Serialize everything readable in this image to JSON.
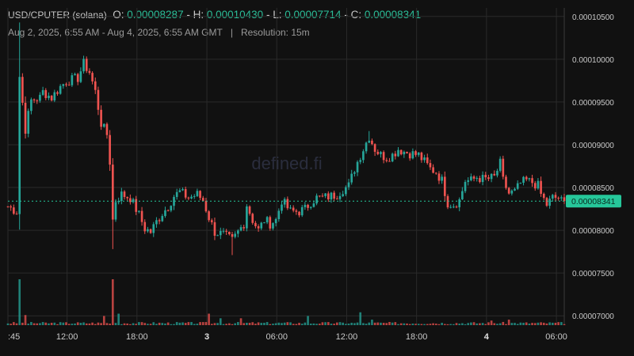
{
  "header": {
    "pair": "USD/CPUTER (solana)",
    "o_label": "O:",
    "o_value": "0.00008287",
    "h_label": "- H:",
    "h_value": "0.00010430",
    "l_label": "- L:",
    "l_value": "0.00007714",
    "c_label": "- C:",
    "c_value": "0.00008341",
    "date_range": "Aug 2, 2025, 6:55 AM - Aug 4, 2025, 6:55 AM GMT",
    "separator": "|",
    "resolution": "Resolution: 15m"
  },
  "watermark": "defined.fi",
  "colors": {
    "up": "#26a69a",
    "down": "#ef5350",
    "background": "#111111",
    "grid": "#2a2a2a",
    "last_price": "#26c79a"
  },
  "chart_data": {
    "type": "candlestick",
    "ylim": [
      6.9e-05,
      0.000106
    ],
    "yticks": [
      {
        "v": 0.000105,
        "label": "0.00010500"
      },
      {
        "v": 0.0001,
        "label": "0.00010000"
      },
      {
        "v": 9.5e-05,
        "label": "0.00009500"
      },
      {
        "v": 9e-05,
        "label": "0.00009000"
      },
      {
        "v": 8.5e-05,
        "label": "0.00008500"
      },
      {
        "v": 8e-05,
        "label": "0.00008000"
      },
      {
        "v": 7.5e-05,
        "label": "0.00007500"
      },
      {
        "v": 7e-05,
        "label": "0.00007000"
      }
    ],
    "xticks": [
      {
        "t": 0,
        "label": ":45",
        "bold": false
      },
      {
        "t": 20.3,
        "label": "12:00",
        "bold": false
      },
      {
        "t": 44.3,
        "label": "18:00",
        "bold": false
      },
      {
        "t": 68.3,
        "label": "3",
        "bold": true
      },
      {
        "t": 92.3,
        "label": "06:00",
        "bold": false
      },
      {
        "t": 116.3,
        "label": "12:00",
        "bold": false
      },
      {
        "t": 140.3,
        "label": "18:00",
        "bold": false
      },
      {
        "t": 164.3,
        "label": "4",
        "bold": true
      },
      {
        "t": 188.3,
        "label": "06:00",
        "bold": false
      }
    ],
    "last_price": 8.341e-05,
    "last_price_label": "0.00008341",
    "price_anchors": [
      [
        0,
        8.28e-05
      ],
      [
        3,
        8.22e-05
      ],
      [
        4,
        9.8e-05
      ],
      [
        6,
        9.18e-05
      ],
      [
        8,
        9.52e-05
      ],
      [
        11,
        9.55e-05
      ],
      [
        12,
        9.62e-05
      ],
      [
        15,
        9.55e-05
      ],
      [
        18,
        9.68e-05
      ],
      [
        20,
        9.74e-05
      ],
      [
        24,
        9.78e-05
      ],
      [
        26,
        9.95e-05
      ],
      [
        28,
        9.85e-05
      ],
      [
        30,
        9.62e-05
      ],
      [
        32,
        9.25e-05
      ],
      [
        34,
        9.12e-05
      ],
      [
        35,
        8.8e-05
      ],
      [
        36,
        8.12e-05
      ],
      [
        37,
        8.35e-05
      ],
      [
        39,
        8.42e-05
      ],
      [
        42,
        8.38e-05
      ],
      [
        45,
        8.18e-05
      ],
      [
        47,
        8.02e-05
      ],
      [
        49,
        7.98e-05
      ],
      [
        51,
        8.1e-05
      ],
      [
        53,
        8.2e-05
      ],
      [
        55,
        8.28e-05
      ],
      [
        57,
        8.4e-05
      ],
      [
        59,
        8.45e-05
      ],
      [
        62,
        8.38e-05
      ],
      [
        65,
        8.42e-05
      ],
      [
        67,
        8.35e-05
      ],
      [
        69,
        8.15e-05
      ],
      [
        71,
        7.98e-05
      ],
      [
        74,
        7.95e-05
      ],
      [
        77,
        7.88e-05
      ],
      [
        79,
        7.98e-05
      ],
      [
        81,
        8.08e-05
      ],
      [
        82,
        8.3e-05
      ],
      [
        84,
        8.12e-05
      ],
      [
        86,
        8e-05
      ],
      [
        88,
        8.12e-05
      ],
      [
        90,
        8.08e-05
      ],
      [
        92,
        8.12e-05
      ],
      [
        94,
        8.35e-05
      ],
      [
        97,
        8.22e-05
      ],
      [
        100,
        8.22e-05
      ],
      [
        102,
        8.25e-05
      ],
      [
        104,
        8.33e-05
      ],
      [
        106,
        8.38e-05
      ],
      [
        108,
        8.38e-05
      ],
      [
        111,
        8.4e-05
      ],
      [
        113,
        8.42e-05
      ],
      [
        115,
        8.48e-05
      ],
      [
        117,
        8.52e-05
      ],
      [
        119,
        8.72e-05
      ],
      [
        120,
        8.8e-05
      ],
      [
        122,
        8.95e-05
      ],
      [
        124,
        9.1e-05
      ],
      [
        126,
        8.95e-05
      ],
      [
        128,
        8.88e-05
      ],
      [
        130,
        8.85e-05
      ],
      [
        132,
        8.88e-05
      ],
      [
        134,
        8.95e-05
      ],
      [
        136,
        8.92e-05
      ],
      [
        138,
        8.9e-05
      ],
      [
        141,
        8.88e-05
      ],
      [
        143,
        8.8e-05
      ],
      [
        145,
        8.72e-05
      ],
      [
        147,
        8.68e-05
      ],
      [
        149,
        8.58e-05
      ],
      [
        151,
        8.32e-05
      ],
      [
        153,
        8.3e-05
      ],
      [
        155,
        8.35e-05
      ],
      [
        157,
        8.58e-05
      ],
      [
        159,
        8.58e-05
      ],
      [
        161,
        8.62e-05
      ],
      [
        163,
        8.6e-05
      ],
      [
        165,
        8.6e-05
      ],
      [
        167,
        8.62e-05
      ],
      [
        169,
        8.78e-05
      ],
      [
        170,
        8.58e-05
      ],
      [
        172,
        8.43e-05
      ],
      [
        174,
        8.45e-05
      ],
      [
        176,
        8.55e-05
      ],
      [
        178,
        8.58e-05
      ],
      [
        180,
        8.56e-05
      ],
      [
        182,
        8.52e-05
      ],
      [
        183,
        8.42e-05
      ],
      [
        185,
        8.3e-05
      ],
      [
        187,
        8.38e-05
      ],
      [
        189,
        8.38e-05
      ],
      [
        190,
        8.34e-05
      ]
    ],
    "volume_spikes": [
      {
        "t": 4,
        "v": 1.0,
        "dir": "up"
      },
      {
        "t": 6,
        "v": 0.22,
        "dir": "down"
      },
      {
        "t": 33,
        "v": 0.2,
        "dir": "down"
      },
      {
        "t": 36,
        "v": 1.0,
        "dir": "down"
      },
      {
        "t": 38,
        "v": 0.25,
        "dir": "up"
      },
      {
        "t": 69,
        "v": 0.25,
        "dir": "down"
      },
      {
        "t": 73,
        "v": 0.15,
        "dir": "up"
      },
      {
        "t": 80,
        "v": 0.15,
        "dir": "down"
      },
      {
        "t": 103,
        "v": 0.2,
        "dir": "up"
      },
      {
        "t": 121,
        "v": 0.28,
        "dir": "up"
      },
      {
        "t": 125,
        "v": 0.12,
        "dir": "up"
      },
      {
        "t": 166,
        "v": 0.1,
        "dir": "down"
      },
      {
        "t": 172,
        "v": 0.12,
        "dir": "down"
      }
    ]
  }
}
